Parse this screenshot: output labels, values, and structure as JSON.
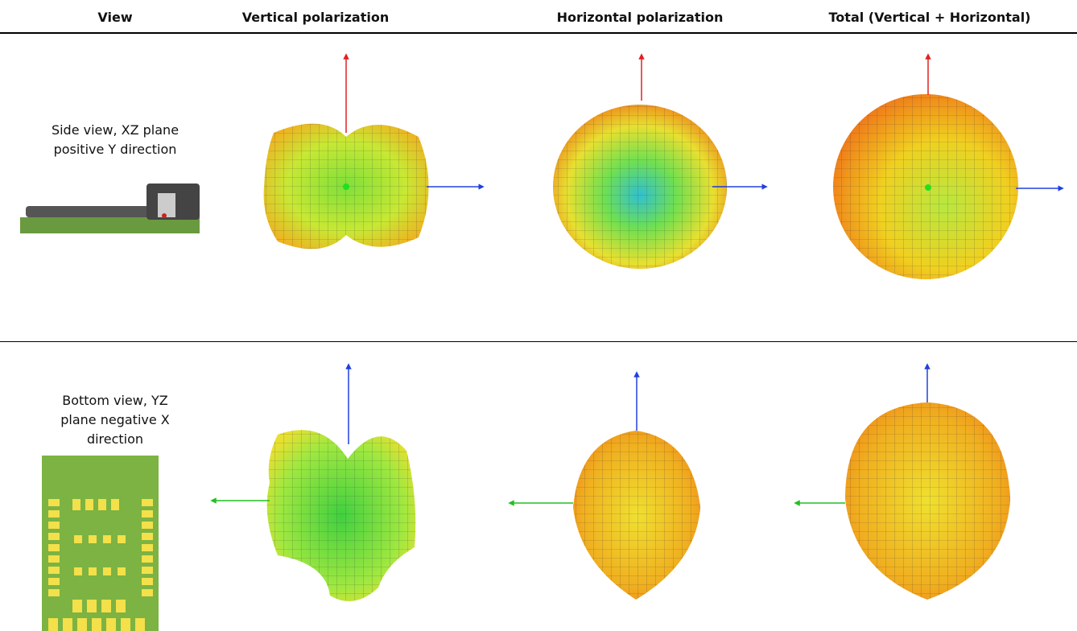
{
  "table": {
    "headers": [
      "View",
      "Vertical polarization",
      "Horizontal polarization",
      "Total (Vertical + Horizontal)"
    ],
    "rows": [
      {
        "label": [
          "Side view, XZ plane",
          "positive Y direction"
        ]
      },
      {
        "label": [
          "Bottom view, YZ",
          "plane negative X",
          "direction"
        ]
      }
    ]
  }
}
